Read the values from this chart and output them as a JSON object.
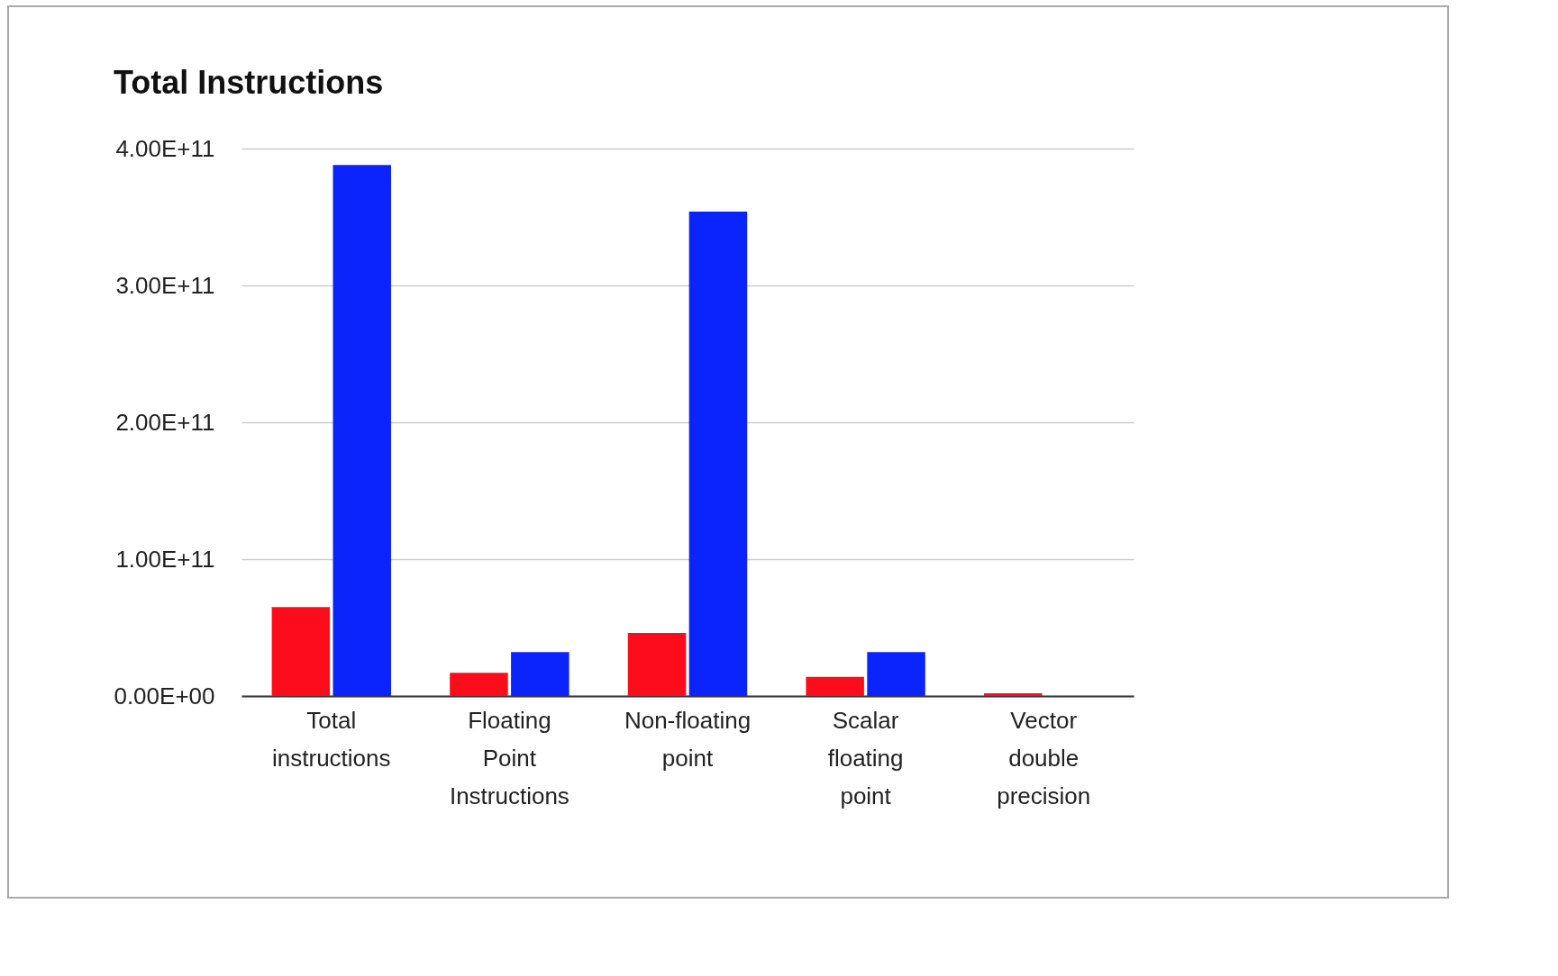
{
  "chart_data": {
    "type": "bar",
    "title": "Total Instructions",
    "categories": [
      "Total instructions",
      "Floating Point Instructions",
      "Non-floating point",
      "Scalar floating point",
      "Vector double precision"
    ],
    "series": [
      {
        "color": "#fc0d1b",
        "values": [
          65000000000.0,
          17000000000.0,
          46000000000.0,
          14000000000.0,
          2000000000.0
        ]
      },
      {
        "color": "#0b24fb",
        "values": [
          388000000000.0,
          32000000000.0,
          354000000000.0,
          32000000000.0,
          0
        ]
      }
    ],
    "ylim": [
      0,
      400000000000.0
    ],
    "yticks": [
      {
        "value": 0,
        "label": "0.00E+00"
      },
      {
        "value": 100000000000.0,
        "label": "1.00E+11"
      },
      {
        "value": 200000000000.0,
        "label": "2.00E+11"
      },
      {
        "value": 300000000000.0,
        "label": "3.00E+11"
      },
      {
        "value": 400000000000.0,
        "label": "4.00E+11"
      }
    ],
    "grid": "y"
  }
}
